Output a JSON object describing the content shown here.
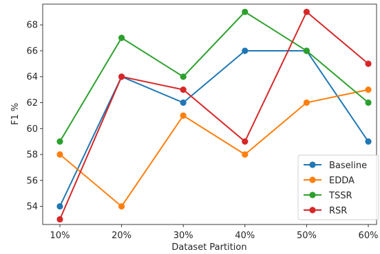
{
  "chart_data": {
    "type": "line",
    "categories": [
      "10%",
      "20%",
      "30%",
      "40%",
      "50%",
      "60%"
    ],
    "xlabel": "Dataset Partition",
    "ylabel": "F1 %",
    "ylim": [
      52.6,
      69.6
    ],
    "yticks": [
      54,
      56,
      58,
      60,
      62,
      64,
      66,
      68
    ],
    "grid": false,
    "legend_position": "bottom-right",
    "series": [
      {
        "name": "Baseline",
        "color": "#1f77b4",
        "values": [
          54,
          64,
          62,
          66,
          66,
          59
        ]
      },
      {
        "name": "EDDA",
        "color": "#ff7f0e",
        "values": [
          58,
          54,
          61,
          58,
          62,
          63
        ]
      },
      {
        "name": "TSSR",
        "color": "#2ca02c",
        "values": [
          59,
          67,
          64,
          69,
          66,
          62
        ]
      },
      {
        "name": "RSR",
        "color": "#d62728",
        "values": [
          53,
          64,
          63,
          59,
          69,
          65
        ]
      }
    ]
  }
}
